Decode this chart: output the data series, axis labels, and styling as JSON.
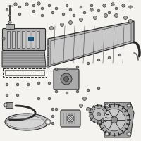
{
  "bg_color": "#f5f3f0",
  "line_color": "#444444",
  "dark_color": "#2a2a2a",
  "highlight_color": "#1a5a8a",
  "fig_width": 2.0,
  "fig_height": 2.0,
  "dpi": 100
}
